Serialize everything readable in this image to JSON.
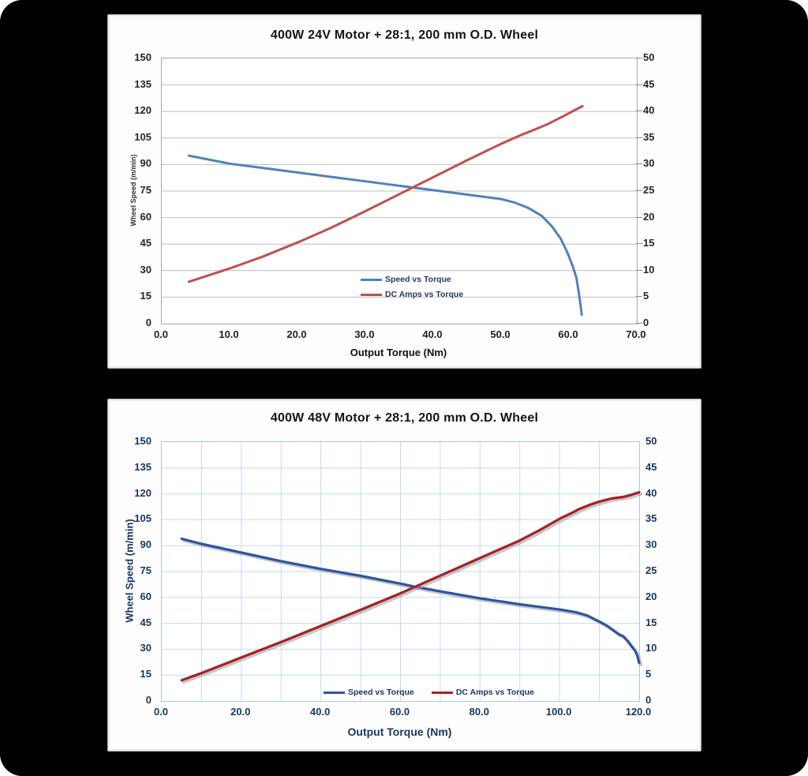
{
  "window": {
    "background_color": "#000000"
  },
  "chart_data": [
    {
      "type": "line",
      "title": "400W 24V Motor + 28:1, 200 mm O.D. Wheel",
      "xlabel": "Output Torque (Nm)",
      "ylabel_left": "Wheel Speed (m/min)",
      "x_range": [
        0,
        70
      ],
      "y_left_range": [
        0,
        150
      ],
      "y_right_range": [
        0,
        50
      ],
      "x_tick_labels": [
        "0.0",
        "10.0",
        "20.0",
        "30.0",
        "40.0",
        "50.0",
        "60.0",
        "70.0"
      ],
      "left_tick_labels": [
        "150",
        "135",
        "120",
        "105",
        "90",
        "75",
        "60",
        "45",
        "30",
        "15",
        "0"
      ],
      "right_tick_labels": [
        "50",
        "45",
        "40",
        "35",
        "30",
        "25",
        "20",
        "15",
        "10",
        "5",
        "0"
      ],
      "grid": "horizontal",
      "grid_color": "#bfbfbf",
      "vertical_grid_step": 0,
      "right_tick_marks": true,
      "line_shadow": false,
      "line_width": 3,
      "legend_layout": "vertical",
      "legend_position": "inside-bottom-center",
      "series": [
        {
          "name": "Speed vs Torque",
          "axis": "left",
          "color": "#4f81bd",
          "points": [
            [
              4,
              95
            ],
            [
              10,
              90.5
            ],
            [
              15,
              88
            ],
            [
              20,
              85.5
            ],
            [
              25,
              83
            ],
            [
              30,
              80.5
            ],
            [
              35,
              78
            ],
            [
              40,
              75.5
            ],
            [
              45,
              73
            ],
            [
              50,
              70.5
            ],
            [
              52,
              68.5
            ],
            [
              54,
              65.5
            ],
            [
              56,
              61
            ],
            [
              57.5,
              55
            ],
            [
              58.8,
              48
            ],
            [
              59.8,
              40
            ],
            [
              60.6,
              32
            ],
            [
              61.1,
              26
            ],
            [
              61.4,
              19
            ],
            [
              61.7,
              11
            ],
            [
              61.9,
              5
            ]
          ]
        },
        {
          "name": "DC Amps vs Torque",
          "axis": "right",
          "color": "#c0504d",
          "points": [
            [
              4,
              7.9
            ],
            [
              10,
              10.4
            ],
            [
              15,
              12.7
            ],
            [
              20,
              15.3
            ],
            [
              25,
              18.1
            ],
            [
              30,
              21.2
            ],
            [
              35,
              24.4
            ],
            [
              40,
              27.6
            ],
            [
              45,
              30.8
            ],
            [
              50,
              33.9
            ],
            [
              53,
              35.6
            ],
            [
              55,
              36.6
            ],
            [
              57,
              37.7
            ],
            [
              59,
              39
            ],
            [
              60.5,
              40
            ],
            [
              62,
              41
            ]
          ]
        }
      ]
    },
    {
      "type": "line",
      "title": "400W 48V Motor + 28:1, 200 mm O.D. Wheel",
      "xlabel": "Output Torque (Nm)",
      "ylabel_left": "Wheel Speed (m/min)",
      "x_range": [
        0,
        120
      ],
      "y_left_range": [
        0,
        150
      ],
      "y_right_range": [
        0,
        50
      ],
      "x_tick_labels": [
        "0.0",
        "20.0",
        "40.0",
        "60.0",
        "80.0",
        "100.0",
        "120.0"
      ],
      "left_tick_labels": [
        "150",
        "135",
        "120",
        "105",
        "90",
        "75",
        "60",
        "45",
        "30",
        "15",
        "0"
      ],
      "right_tick_labels": [
        "50",
        "45",
        "40",
        "35",
        "30",
        "25",
        "20",
        "15",
        "10",
        "5",
        "0"
      ],
      "grid": "both",
      "grid_color": "#c5d9f1",
      "vertical_grid_step": 10,
      "right_tick_marks": false,
      "line_shadow": true,
      "line_width": 3.2,
      "legend_layout": "horizontal",
      "legend_position": "inside-bottom-center",
      "series": [
        {
          "name": "Speed vs Torque",
          "axis": "left",
          "color": "#2b55a2",
          "points": [
            [
              5,
              94
            ],
            [
              10,
              91
            ],
            [
              20,
              86
            ],
            [
              30,
              81
            ],
            [
              40,
              76.5
            ],
            [
              50,
              72.5
            ],
            [
              60,
              68
            ],
            [
              63,
              66.5
            ],
            [
              70,
              63.5
            ],
            [
              80,
              59.5
            ],
            [
              90,
              56
            ],
            [
              95,
              54.5
            ],
            [
              100,
              53
            ],
            [
              104,
              51.5
            ],
            [
              107,
              49.5
            ],
            [
              110,
              46
            ],
            [
              112,
              43.5
            ],
            [
              113.5,
              41
            ],
            [
              115,
              38.5
            ],
            [
              116,
              37.5
            ],
            [
              117,
              35
            ],
            [
              118,
              32
            ],
            [
              119,
              29
            ],
            [
              119.5,
              26.5
            ],
            [
              120,
              22
            ]
          ]
        },
        {
          "name": "DC Amps vs Torque",
          "axis": "right",
          "color": "#a42125",
          "points": [
            [
              5,
              4
            ],
            [
              10,
              5.4
            ],
            [
              20,
              8.4
            ],
            [
              30,
              11.4
            ],
            [
              40,
              14.5
            ],
            [
              50,
              17.6
            ],
            [
              60,
              20.8
            ],
            [
              70,
              24.2
            ],
            [
              80,
              27.6
            ],
            [
              90,
              31
            ],
            [
              95,
              33
            ],
            [
              100,
              35.2
            ],
            [
              103,
              36.3
            ],
            [
              105,
              37.1
            ],
            [
              108,
              38
            ],
            [
              110,
              38.5
            ],
            [
              113,
              39.1
            ],
            [
              116,
              39.4
            ],
            [
              118,
              39.8
            ],
            [
              120,
              40.3
            ]
          ]
        }
      ]
    }
  ]
}
